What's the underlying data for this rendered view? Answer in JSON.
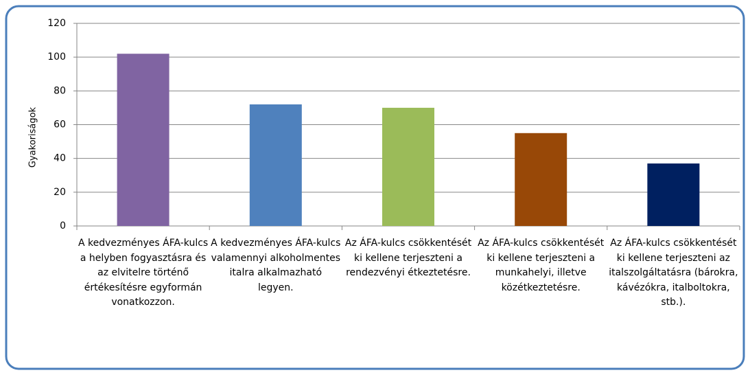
{
  "chart_data": {
    "type": "bar",
    "y_label": "Gyakoriságok",
    "categories": [
      "A kedvezményes ÁFA-kulcs a helyben fogyasztásra és az elvitelre történő értékesítésre egyformán vonatkozzon.",
      "A kedvezményes ÁFA-kulcs valamennyi alkoholmentes italra alkalmazható legyen.",
      "Az ÁFA-kulcs csökkentését ki kellene terjeszteni a rendezvényi étkeztetésre.",
      "Az ÁFA-kulcs csökkentését ki kellene terjeszteni a munkahelyi, illetve közétkeztetésre.",
      "Az ÁFA-kulcs csökkentését ki kellene terjeszteni az italszolgáltatásra (bárokra, kávézókra, italboltokra, stb.)."
    ],
    "values": [
      102,
      72,
      70,
      55,
      37
    ],
    "colors": [
      "#8064a2",
      "#4f81bd",
      "#9bbb59",
      "#984807",
      "#002060"
    ],
    "ylim": [
      0,
      120
    ],
    "yticks": [
      0,
      20,
      40,
      60,
      80,
      100,
      120
    ],
    "grid": true
  }
}
